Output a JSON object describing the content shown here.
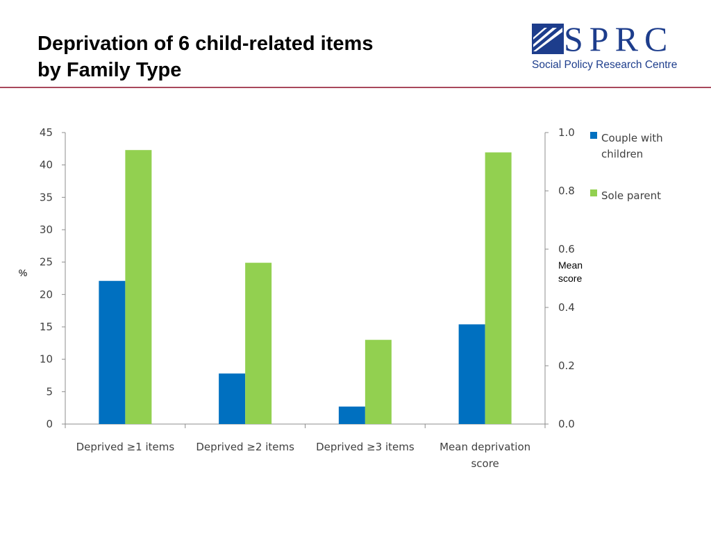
{
  "slide": {
    "title_line1": "Deprivation of 6 child-related items",
    "title_line2": "by Family Type"
  },
  "logo": {
    "wordmark": "SPRC",
    "tagline": "Social Policy Research Centre",
    "color": "#1d3d8c"
  },
  "rule_color": "#a8485c",
  "chart_data": {
    "type": "bar",
    "categories": [
      [
        "Deprived ≥1 items"
      ],
      [
        "Deprived ≥2 items"
      ],
      [
        "Deprived ≥3 items"
      ],
      [
        "Mean deprivation",
        "score"
      ]
    ],
    "series": [
      {
        "name": [
          "Couple with",
          "children"
        ],
        "color": "#0070c0",
        "values": [
          22.1,
          7.8,
          2.7,
          0.342
        ]
      },
      {
        "name": [
          "Sole parent"
        ],
        "color": "#92d050",
        "values": [
          42.3,
          24.9,
          13.0,
          0.932
        ]
      }
    ],
    "axes_for_category": [
      "left",
      "left",
      "left",
      "right"
    ],
    "y_left": {
      "label": "%",
      "min": 0,
      "max": 45,
      "ticks": [
        "0",
        "5",
        "10",
        "15",
        "20",
        "25",
        "30",
        "35",
        "40",
        "45"
      ]
    },
    "y_right": {
      "label": [
        "Mean",
        "score"
      ],
      "min": 0,
      "max": 1.0,
      "ticks": [
        "0.0",
        "0.2",
        "0.4",
        "0.6",
        "0.8",
        "1.0"
      ]
    },
    "grid": false,
    "legend_position": "right"
  }
}
